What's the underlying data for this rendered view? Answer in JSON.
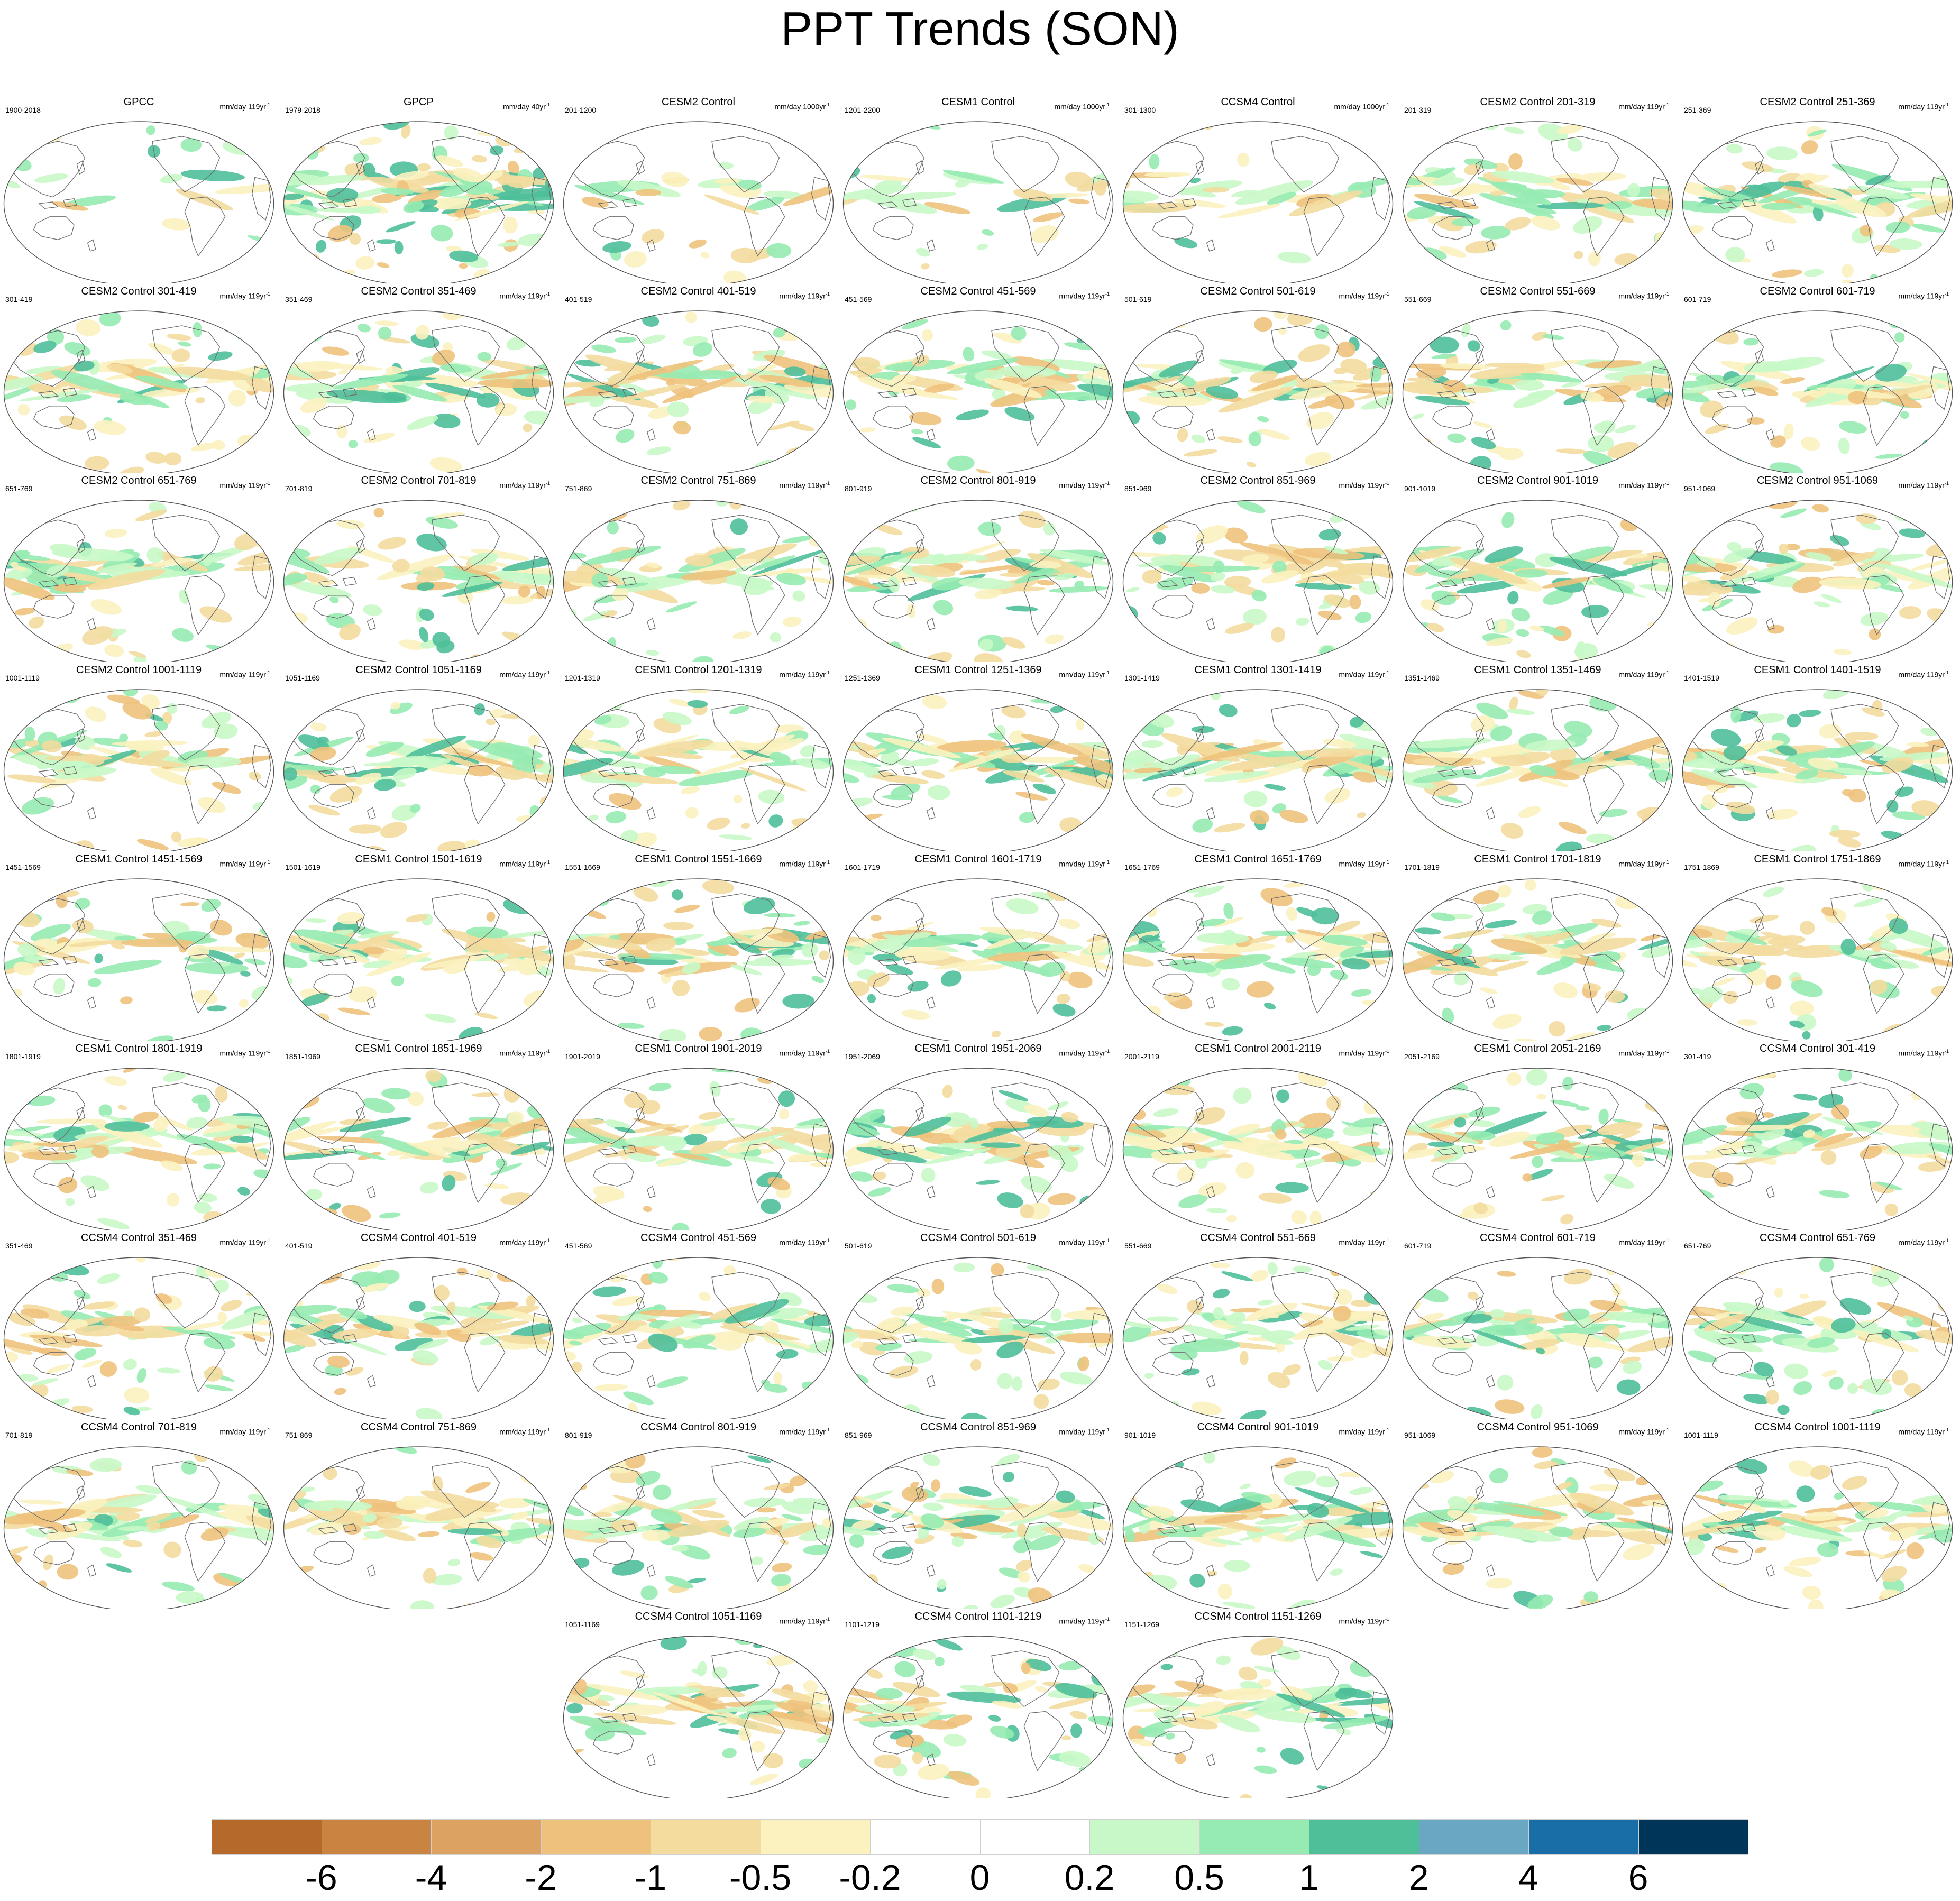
{
  "title": "PPT Trends (SON)",
  "colorbar": {
    "colors": [
      "#b5692a",
      "#c88440",
      "#dca262",
      "#eec27c",
      "#f4dc9e",
      "#fbf2bf",
      "#ffffff",
      "#ffffff",
      "#c8f8c8",
      "#96ebb2",
      "#4fbf9a",
      "#69a7c3",
      "#1a6ea8",
      "#00355a"
    ],
    "labels": [
      "-6",
      "-4",
      "-2",
      "-1",
      "-0.5",
      "-0.2",
      "0",
      "0.2",
      "0.5",
      "1",
      "2",
      "4",
      "6"
    ]
  },
  "panels": [
    {
      "title": "GPCC",
      "range": "1900-2018",
      "units": "mm/day 119yr",
      "unit_exp": "-1"
    },
    {
      "title": "GPCP",
      "range": "1979-2018",
      "units": "mm/day 40yr",
      "unit_exp": "-1"
    },
    {
      "title": "CESM2 Control",
      "range": "201-1200",
      "units": "mm/day 1000yr",
      "unit_exp": "-1"
    },
    {
      "title": "CESM1 Control",
      "range": "1201-2200",
      "units": "mm/day 1000yr",
      "unit_exp": "-1"
    },
    {
      "title": "CCSM4 Control",
      "range": "301-1300",
      "units": "mm/day 1000yr",
      "unit_exp": "-1"
    },
    {
      "title": "CESM2 Control 201-319",
      "range": "201-319",
      "units": "mm/day 119yr",
      "unit_exp": "-1"
    },
    {
      "title": "CESM2 Control 251-369",
      "range": "251-369",
      "units": "mm/day 119yr",
      "unit_exp": "-1"
    },
    {
      "title": "CESM2 Control 301-419",
      "range": "301-419",
      "units": "mm/day 119yr",
      "unit_exp": "-1"
    },
    {
      "title": "CESM2 Control 351-469",
      "range": "351-469",
      "units": "mm/day 119yr",
      "unit_exp": "-1"
    },
    {
      "title": "CESM2 Control 401-519",
      "range": "401-519",
      "units": "mm/day 119yr",
      "unit_exp": "-1"
    },
    {
      "title": "CESM2 Control 451-569",
      "range": "451-569",
      "units": "mm/day 119yr",
      "unit_exp": "-1"
    },
    {
      "title": "CESM2 Control 501-619",
      "range": "501-619",
      "units": "mm/day 119yr",
      "unit_exp": "-1"
    },
    {
      "title": "CESM2 Control 551-669",
      "range": "551-669",
      "units": "mm/day 119yr",
      "unit_exp": "-1"
    },
    {
      "title": "CESM2 Control 601-719",
      "range": "601-719",
      "units": "mm/day 119yr",
      "unit_exp": "-1"
    },
    {
      "title": "CESM2 Control 651-769",
      "range": "651-769",
      "units": "mm/day 119yr",
      "unit_exp": "-1"
    },
    {
      "title": "CESM2 Control 701-819",
      "range": "701-819",
      "units": "mm/day 119yr",
      "unit_exp": "-1"
    },
    {
      "title": "CESM2 Control 751-869",
      "range": "751-869",
      "units": "mm/day 119yr",
      "unit_exp": "-1"
    },
    {
      "title": "CESM2 Control 801-919",
      "range": "801-919",
      "units": "mm/day 119yr",
      "unit_exp": "-1"
    },
    {
      "title": "CESM2 Control 851-969",
      "range": "851-969",
      "units": "mm/day 119yr",
      "unit_exp": "-1"
    },
    {
      "title": "CESM2 Control 901-1019",
      "range": "901-1019",
      "units": "mm/day 119yr",
      "unit_exp": "-1"
    },
    {
      "title": "CESM2 Control 951-1069",
      "range": "951-1069",
      "units": "mm/day 119yr",
      "unit_exp": "-1"
    },
    {
      "title": "CESM2 Control 1001-1119",
      "range": "1001-1119",
      "units": "mm/day 119yr",
      "unit_exp": "-1"
    },
    {
      "title": "CESM2 Control 1051-1169",
      "range": "1051-1169",
      "units": "mm/day 119yr",
      "unit_exp": "-1"
    },
    {
      "title": "CESM1 Control 1201-1319",
      "range": "1201-1319",
      "units": "mm/day 119yr",
      "unit_exp": "-1"
    },
    {
      "title": "CESM1 Control 1251-1369",
      "range": "1251-1369",
      "units": "mm/day 119yr",
      "unit_exp": "-1"
    },
    {
      "title": "CESM1 Control 1301-1419",
      "range": "1301-1419",
      "units": "mm/day 119yr",
      "unit_exp": "-1"
    },
    {
      "title": "CESM1 Control 1351-1469",
      "range": "1351-1469",
      "units": "mm/day 119yr",
      "unit_exp": "-1"
    },
    {
      "title": "CESM1 Control 1401-1519",
      "range": "1401-1519",
      "units": "mm/day 119yr",
      "unit_exp": "-1"
    },
    {
      "title": "CESM1 Control 1451-1569",
      "range": "1451-1569",
      "units": "mm/day 119yr",
      "unit_exp": "-1"
    },
    {
      "title": "CESM1 Control 1501-1619",
      "range": "1501-1619",
      "units": "mm/day 119yr",
      "unit_exp": "-1"
    },
    {
      "title": "CESM1 Control 1551-1669",
      "range": "1551-1669",
      "units": "mm/day 119yr",
      "unit_exp": "-1"
    },
    {
      "title": "CESM1 Control 1601-1719",
      "range": "1601-1719",
      "units": "mm/day 119yr",
      "unit_exp": "-1"
    },
    {
      "title": "CESM1 Control 1651-1769",
      "range": "1651-1769",
      "units": "mm/day 119yr",
      "unit_exp": "-1"
    },
    {
      "title": "CESM1 Control 1701-1819",
      "range": "1701-1819",
      "units": "mm/day 119yr",
      "unit_exp": "-1"
    },
    {
      "title": "CESM1 Control 1751-1869",
      "range": "1751-1869",
      "units": "mm/day 119yr",
      "unit_exp": "-1"
    },
    {
      "title": "CESM1 Control 1801-1919",
      "range": "1801-1919",
      "units": "mm/day 119yr",
      "unit_exp": "-1"
    },
    {
      "title": "CESM1 Control 1851-1969",
      "range": "1851-1969",
      "units": "mm/day 119yr",
      "unit_exp": "-1"
    },
    {
      "title": "CESM1 Control 1901-2019",
      "range": "1901-2019",
      "units": "mm/day 119yr",
      "unit_exp": "-1"
    },
    {
      "title": "CESM1 Control 1951-2069",
      "range": "1951-2069",
      "units": "mm/day 119yr",
      "unit_exp": "-1"
    },
    {
      "title": "CESM1 Control 2001-2119",
      "range": "2001-2119",
      "units": "mm/day 119yr",
      "unit_exp": "-1"
    },
    {
      "title": "CESM1 Control 2051-2169",
      "range": "2051-2169",
      "units": "mm/day 119yr",
      "unit_exp": "-1"
    },
    {
      "title": "CCSM4 Control 301-419",
      "range": "301-419",
      "units": "mm/day 119yr",
      "unit_exp": "-1"
    },
    {
      "title": "CCSM4 Control 351-469",
      "range": "351-469",
      "units": "mm/day 119yr",
      "unit_exp": "-1"
    },
    {
      "title": "CCSM4 Control 401-519",
      "range": "401-519",
      "units": "mm/day 119yr",
      "unit_exp": "-1"
    },
    {
      "title": "CCSM4 Control 451-569",
      "range": "451-569",
      "units": "mm/day 119yr",
      "unit_exp": "-1"
    },
    {
      "title": "CCSM4 Control 501-619",
      "range": "501-619",
      "units": "mm/day 119yr",
      "unit_exp": "-1"
    },
    {
      "title": "CCSM4 Control 551-669",
      "range": "551-669",
      "units": "mm/day 119yr",
      "unit_exp": "-1"
    },
    {
      "title": "CCSM4 Control 601-719",
      "range": "601-719",
      "units": "mm/day 119yr",
      "unit_exp": "-1"
    },
    {
      "title": "CCSM4 Control 651-769",
      "range": "651-769",
      "units": "mm/day 119yr",
      "unit_exp": "-1"
    },
    {
      "title": "CCSM4 Control 701-819",
      "range": "701-819",
      "units": "mm/day 119yr",
      "unit_exp": "-1"
    },
    {
      "title": "CCSM4 Control 751-869",
      "range": "751-869",
      "units": "mm/day 119yr",
      "unit_exp": "-1"
    },
    {
      "title": "CCSM4 Control 801-919",
      "range": "801-919",
      "units": "mm/day 119yr",
      "unit_exp": "-1"
    },
    {
      "title": "CCSM4 Control 851-969",
      "range": "851-969",
      "units": "mm/day 119yr",
      "unit_exp": "-1"
    },
    {
      "title": "CCSM4 Control 901-1019",
      "range": "901-1019",
      "units": "mm/day 119yr",
      "unit_exp": "-1"
    },
    {
      "title": "CCSM4 Control 951-1069",
      "range": "951-1069",
      "units": "mm/day 119yr",
      "unit_exp": "-1"
    },
    {
      "title": "CCSM4 Control 1001-1119",
      "range": "1001-1119",
      "units": "mm/day 119yr",
      "unit_exp": "-1"
    },
    {
      "title": "CCSM4 Control 1051-1169",
      "range": "1051-1169",
      "units": "mm/day 119yr",
      "unit_exp": "-1"
    },
    {
      "title": "CCSM4 Control 1101-1219",
      "range": "1101-1219",
      "units": "mm/day 119yr",
      "unit_exp": "-1"
    },
    {
      "title": "CCSM4 Control 1151-1269",
      "range": "1151-1269",
      "units": "mm/day 119yr",
      "unit_exp": "-1"
    }
  ]
}
